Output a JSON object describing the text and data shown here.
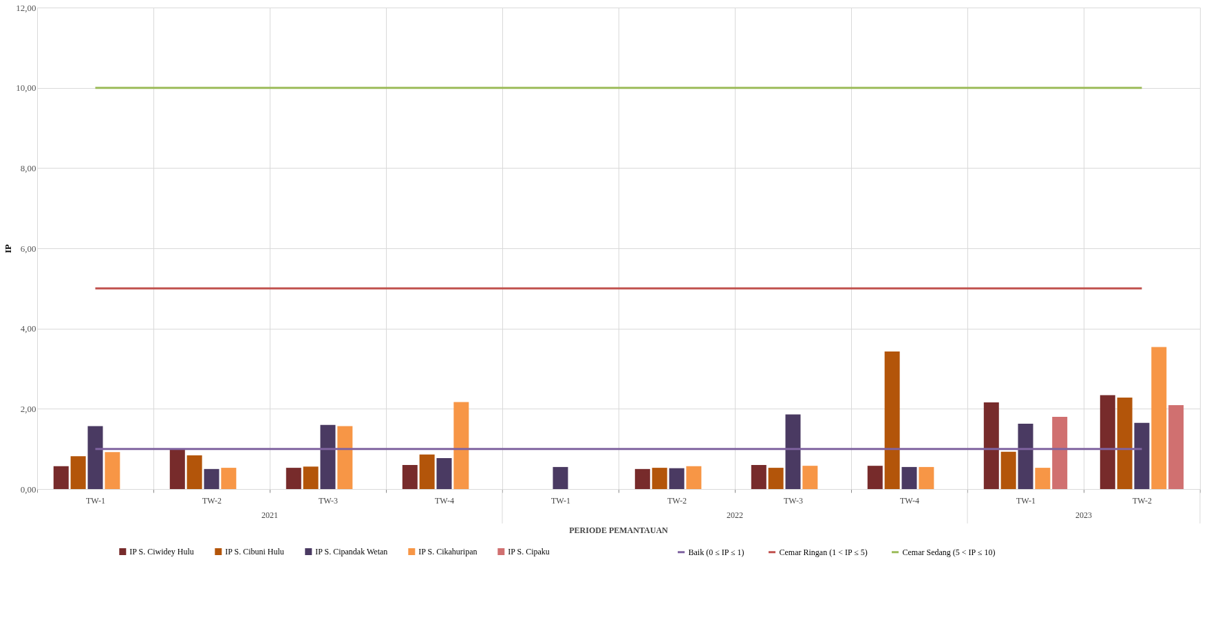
{
  "chart_data": {
    "type": "bar",
    "ylabel": "IP",
    "xlabel": "PERIODE PEMANTAUAN",
    "categories": [
      "TW-1",
      "TW-2",
      "TW-3",
      "TW-4",
      "TW-1",
      "TW-2",
      "TW-3",
      "TW-4",
      "TW-1",
      "TW-2"
    ],
    "annotations": [
      "2021",
      "2022",
      "2023"
    ],
    "ylim": [
      0,
      12
    ],
    "yticks": [
      {
        "value": 0,
        "label": "0,00"
      },
      {
        "value": 2,
        "label": "2,00"
      },
      {
        "value": 4,
        "label": "4,00"
      },
      {
        "value": 6,
        "label": "6,00"
      },
      {
        "value": 8,
        "label": "8,00"
      },
      {
        "value": 10,
        "label": "10,00"
      },
      {
        "value": 12,
        "label": "12,00"
      }
    ],
    "grid": true,
    "legend": "bottom",
    "series": [
      {
        "name": "IP S. Ciwidey Hulu",
        "color": "#772b2b",
        "values": [
          0.57,
          1.0,
          0.53,
          0.6,
          null,
          0.5,
          0.6,
          0.58,
          2.16,
          2.34
        ]
      },
      {
        "name": "IP S. Cibuni Hulu",
        "color": "#b3550a",
        "values": [
          0.82,
          0.84,
          0.56,
          0.86,
          null,
          0.53,
          0.53,
          3.43,
          0.93,
          2.28
        ]
      },
      {
        "name": "IP S. Cipandak Wetan",
        "color": "#4a3a62",
        "values": [
          1.57,
          0.5,
          1.6,
          0.77,
          0.55,
          0.52,
          1.86,
          0.55,
          1.63,
          1.65
        ]
      },
      {
        "name": "IP S. Cikahuripan",
        "color": "#f79646",
        "values": [
          0.92,
          0.53,
          1.57,
          2.17,
          null,
          0.57,
          0.58,
          0.55,
          0.53,
          3.54
        ]
      },
      {
        "name": "IP S. Cipaku",
        "color": "#d07070",
        "values": [
          null,
          null,
          null,
          null,
          null,
          null,
          null,
          null,
          1.8,
          2.09
        ]
      },
      {
        "name": "Baik (0 ≤ IP ≤ 1)",
        "type": "line",
        "color": "#7f63a0",
        "values": [
          1,
          1,
          1,
          1,
          1,
          1,
          1,
          1,
          1,
          1
        ]
      },
      {
        "name": "Cemar Ringan (1 < IP ≤ 5)",
        "type": "line",
        "color": "#c0504d",
        "values": [
          5,
          5,
          5,
          5,
          5,
          5,
          5,
          5,
          5,
          5
        ]
      },
      {
        "name": "Cemar Sedang (5 < IP ≤ 10)",
        "type": "line",
        "color": "#9bbb59",
        "values": [
          10,
          10,
          10,
          10,
          10,
          10,
          10,
          10,
          10,
          10
        ]
      }
    ]
  }
}
